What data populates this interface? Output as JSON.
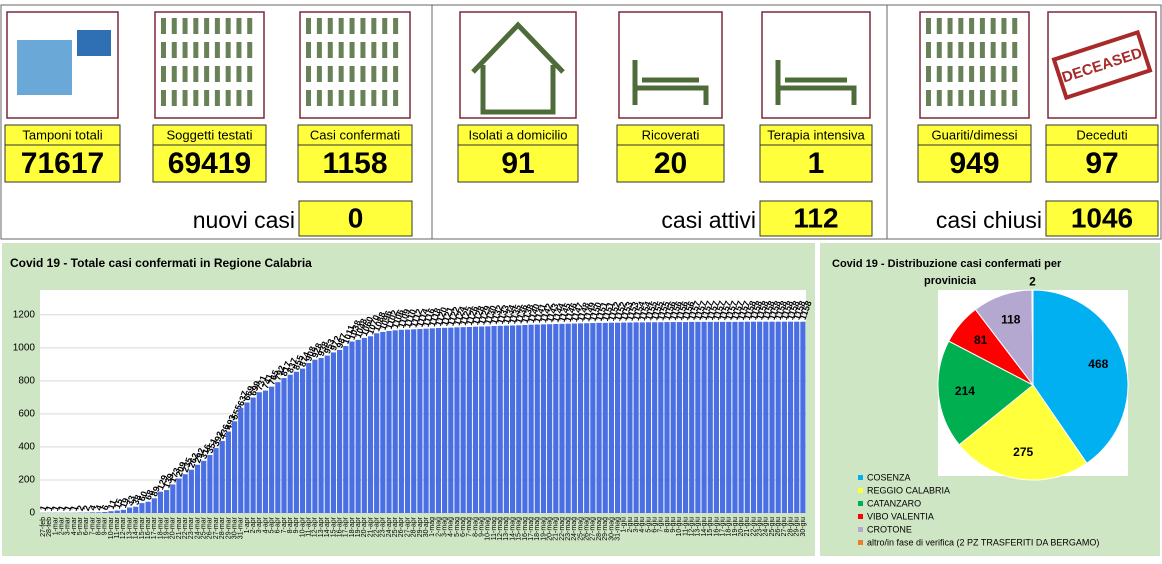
{
  "tiles": [
    {
      "label": "Tamponi totali",
      "value": 71617
    },
    {
      "label": "Soggetti testati",
      "value": 69419
    },
    {
      "label": "Casi confermati",
      "value": 1158
    },
    {
      "label": "Isolati a domicilio",
      "value": 91
    },
    {
      "label": "Ricoverati",
      "value": 20
    },
    {
      "label": "Terapia intensiva",
      "value": 1
    },
    {
      "label": "Guariti/dimessi",
      "value": 949
    },
    {
      "label": "Deceduti",
      "value": 97
    }
  ],
  "summaries": [
    {
      "label": "nuovi casi",
      "value": 0
    },
    {
      "label": "casi attivi",
      "value": 112
    },
    {
      "label": "casi chiusi",
      "value": 1046
    }
  ],
  "deceased_stamp": "DECEASED",
  "chart_data": [
    {
      "type": "bar",
      "title": "Covid 19 - Totale casi confermati in Regione Calabria",
      "color": "#4a6fe3",
      "ylim": [
        0,
        1350
      ],
      "yticks": [
        0,
        200,
        400,
        600,
        800,
        1000,
        1200
      ],
      "grid": true,
      "categories": [
        "27-feb",
        "28-feb",
        "1-mar",
        "2-mar",
        "3-mar",
        "4-mar",
        "5-mar",
        "6-mar",
        "7-mar",
        "8-mar",
        "9-mar",
        "10-mar",
        "11-mar",
        "12-mar",
        "13-mar",
        "14-mar",
        "15-mar",
        "16-mar",
        "17-mar",
        "18-mar",
        "19-mar",
        "20-mar",
        "21-mar",
        "22-mar",
        "23-mar",
        "24-mar",
        "25-mar",
        "26-mar",
        "27-mar",
        "28-mar",
        "29-mar",
        "30-mar",
        "31-mar",
        "1-apr",
        "2-apr",
        "3-apr",
        "4-apr",
        "5-apr",
        "6-apr",
        "7-apr",
        "8-apr",
        "9-apr",
        "10-apr",
        "11-apr",
        "12-apr",
        "13-apr",
        "14-apr",
        "15-apr",
        "16-apr",
        "17-apr",
        "18-apr",
        "19-apr",
        "20-apr",
        "21-apr",
        "22-apr",
        "23-apr",
        "24-apr",
        "25-apr",
        "26-apr",
        "27-apr",
        "28-apr",
        "29-apr",
        "30-apr",
        "1-mag",
        "2-mag",
        "3-mag",
        "4-mag",
        "5-mag",
        "6-mag",
        "7-mag",
        "8-mag",
        "9-mag",
        "10-mag",
        "11-mag",
        "12-mag",
        "13-mag",
        "14-mag",
        "15-mag",
        "16-mag",
        "17-mag",
        "18-mag",
        "19-mag",
        "20-mag",
        "21-mag",
        "22-mag",
        "23-mag",
        "24-mag",
        "25-mag",
        "26-mag",
        "27-mag",
        "28-mag",
        "29-mag",
        "30-mag",
        "31-mag",
        "1-giu",
        "2-giu",
        "3-giu",
        "4-giu",
        "5-giu",
        "6-giu",
        "7-giu",
        "8-giu",
        "9-giu",
        "10-giu",
        "11-giu",
        "12-giu",
        "13-giu",
        "14-giu",
        "15-giu",
        "16-giu",
        "17-giu",
        "18-giu",
        "19-giu",
        "20-giu",
        "21-giu",
        "22-giu",
        "23-giu",
        "24-giu",
        "25-giu",
        "26-giu",
        "27-giu",
        "28-giu",
        "29-giu",
        "30-giu"
      ],
      "values": [
        1,
        1,
        1,
        1,
        1,
        1,
        2,
        2,
        4,
        4,
        6,
        11,
        15,
        19,
        33,
        38,
        60,
        68,
        89,
        129,
        139,
        173,
        209,
        235,
        262,
        292,
        316,
        351,
        393,
        436,
        493,
        555,
        637,
        669,
        699,
        731,
        741,
        765,
        792,
        817,
        837,
        855,
        874,
        908,
        928,
        938,
        953,
        972,
        987,
        1011,
        1038,
        1048,
        1060,
        1070,
        1088,
        1096,
        1102,
        1106,
        1109,
        1110,
        1112,
        1114,
        1116,
        1118,
        1120,
        1121,
        1122,
        1124,
        1125,
        1126,
        1128,
        1129,
        1130,
        1132,
        1133,
        1134,
        1135,
        1136,
        1138,
        1140,
        1141,
        1142,
        1143,
        1144,
        1145,
        1146,
        1147,
        1148,
        1149,
        1150,
        1151,
        1151,
        1152,
        1152,
        1153,
        1153,
        1154,
        1154,
        1155,
        1155,
        1155,
        1156,
        1156,
        1156,
        1156,
        1157,
        1157,
        1157,
        1157,
        1157,
        1157,
        1157,
        1157,
        1157,
        1158,
        1158,
        1158,
        1158,
        1158,
        1158,
        1158,
        1158,
        1158,
        1158
      ]
    },
    {
      "type": "pie",
      "title": "Covid 19 - Distribuzione casi confermati per provinicia",
      "categories": [
        "COSENZA",
        "REGGIO CALABRIA",
        "CATANZARO",
        "VIBO VALENTIA",
        "CROTONE",
        "altro/in fase di verifica (2 PZ TRASFERITI DA BERGAMO)"
      ],
      "values": [
        468,
        275,
        214,
        81,
        118,
        2
      ],
      "colors": [
        "#00b0f0",
        "#ffff3c",
        "#00b050",
        "#ff0000",
        "#b4a7d0",
        "#ed7d31"
      ]
    }
  ]
}
